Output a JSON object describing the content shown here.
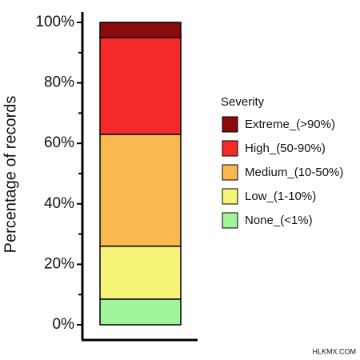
{
  "chart_data": {
    "type": "stacked_bar",
    "y_label": "Percentage of records",
    "legend_title": "Severity",
    "legend_position": "right",
    "categories": [
      null
    ],
    "series": [
      {
        "name": "Extreme_(>90%)",
        "color": "#8b0a0a",
        "values": [
          5
        ]
      },
      {
        "name": "High_(50-90%)",
        "color": "#f42a2a",
        "values": [
          32
        ]
      },
      {
        "name": "Medium_(10-50%)",
        "color": "#f9b84f",
        "values": [
          37
        ]
      },
      {
        "name": "Low_(1-10%)",
        "color": "#f6f57a",
        "values": [
          17.5
        ]
      },
      {
        "name": "None_(<1%)",
        "color": "#a0f59a",
        "values": [
          8.5
        ]
      }
    ],
    "ylim": [
      0,
      100
    ],
    "yticks": [
      {
        "value": 0,
        "label": "0%"
      },
      {
        "value": 20,
        "label": "20%"
      },
      {
        "value": 40,
        "label": "40%"
      },
      {
        "value": 60,
        "label": "60%"
      },
      {
        "value": 80,
        "label": "80%"
      },
      {
        "value": 100,
        "label": "100%"
      }
    ],
    "minor_yticks": [
      10,
      30,
      50,
      70,
      90
    ],
    "grid": false,
    "watermark": "HLKMX.COM"
  }
}
